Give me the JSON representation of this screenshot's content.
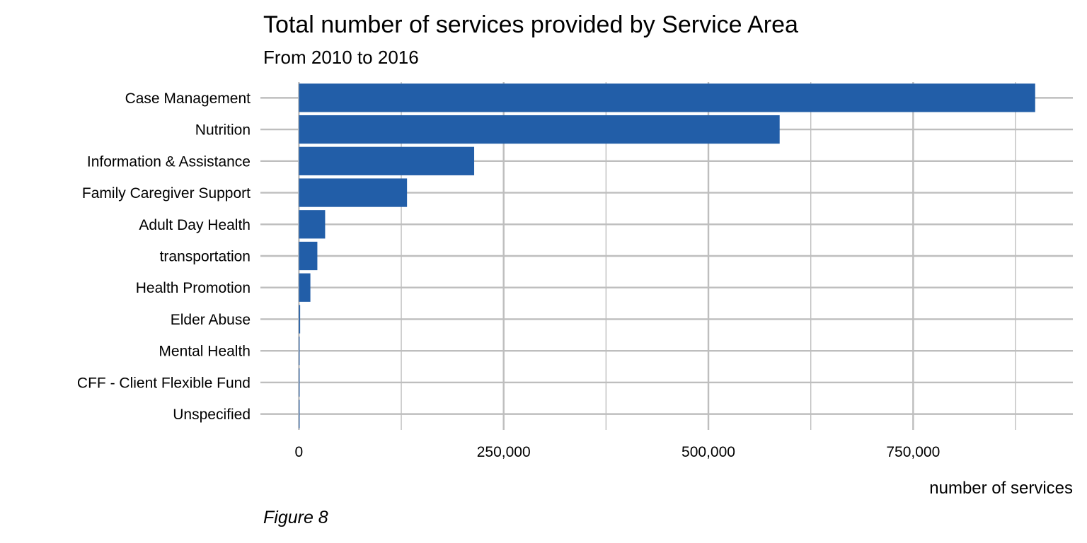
{
  "chart_data": {
    "type": "bar",
    "orientation": "horizontal",
    "title": "Total number of services provided by Service Area",
    "subtitle": "From 2010 to 2016",
    "xlabel": "number of services",
    "ylabel": "",
    "caption": "Figure 8",
    "categories": [
      "Case Management",
      "Nutrition",
      "Information & Assistance",
      "Family Caregiver Support",
      "Adult Day Health",
      "transportation",
      "Health Promotion",
      "Elder Abuse",
      "Mental Health",
      "CFF - Client Flexible Fund",
      "Unspecified"
    ],
    "values": [
      899000,
      587000,
      214000,
      132000,
      32000,
      22500,
      14000,
      1500,
      800,
      500,
      400
    ],
    "xlim": [
      -47000,
      945000
    ],
    "xticks": [
      0,
      250000,
      500000,
      750000
    ],
    "xtick_labels": [
      "0",
      "250,000",
      "500,000",
      "750,000"
    ],
    "grid": true,
    "bar_color": "#225ea8",
    "grid_color": "#bebebe"
  }
}
